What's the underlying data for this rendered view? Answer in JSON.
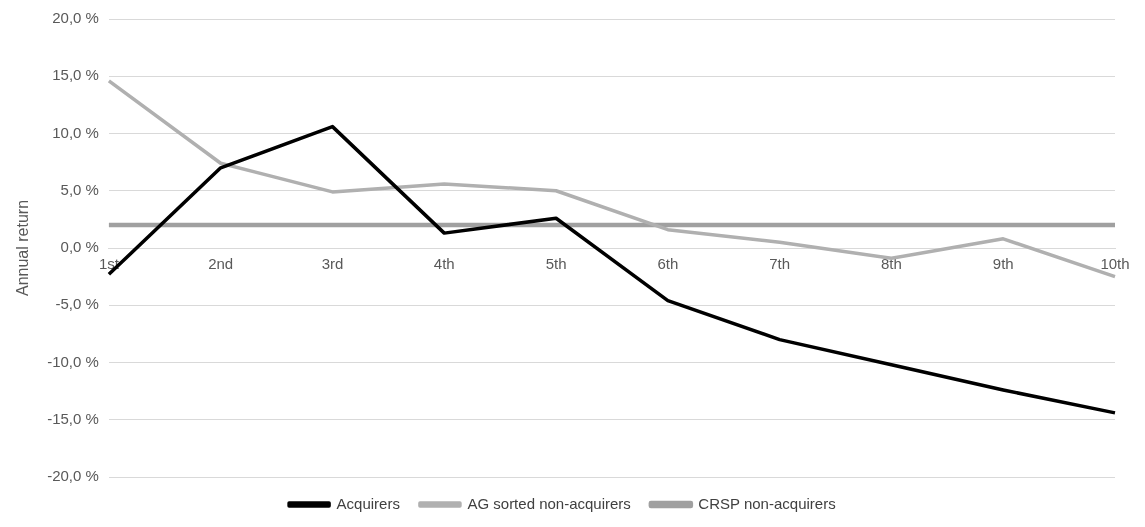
{
  "chart_data": {
    "type": "line",
    "ylabel": "Annual return",
    "categories": [
      "1st",
      "2nd",
      "3rd",
      "4th",
      "5th",
      "6th",
      "7th",
      "8th",
      "9th",
      "10th"
    ],
    "series": [
      {
        "name": "Acquirers",
        "color": "#000000",
        "values": [
          -2.3,
          7.0,
          10.6,
          1.3,
          2.6,
          -4.6,
          -8.0,
          -10.2,
          -12.4,
          -14.4
        ]
      },
      {
        "name": "AG sorted non-acquirers",
        "color": "#b0b0b0",
        "values": [
          14.6,
          7.4,
          4.9,
          5.6,
          5.0,
          1.6,
          0.5,
          -0.9,
          0.8,
          -2.5
        ]
      },
      {
        "name": "CRSP non-acquirers",
        "color": "#a0a0a0",
        "values": [
          2.0,
          2.0,
          2.0,
          2.0,
          2.0,
          2.0,
          2.0,
          2.0,
          2.0,
          2.0
        ]
      }
    ],
    "ylim": [
      -20,
      20
    ],
    "yticks": [
      {
        "value": -20,
        "label": "-20,0 %"
      },
      {
        "value": -15,
        "label": "-15,0 %"
      },
      {
        "value": -10,
        "label": "-10,0 %"
      },
      {
        "value": -5,
        "label": "-5,0 %"
      },
      {
        "value": 0,
        "label": "0,0 %"
      },
      {
        "value": 5,
        "label": "5,0 %"
      },
      {
        "value": 10,
        "label": "10,0 %"
      },
      {
        "value": 15,
        "label": "15,0 %"
      },
      {
        "value": 20,
        "label": "20,0 %"
      }
    ],
    "grid": "y",
    "legend": "bottom",
    "marker": "none",
    "line_style": "solid"
  }
}
